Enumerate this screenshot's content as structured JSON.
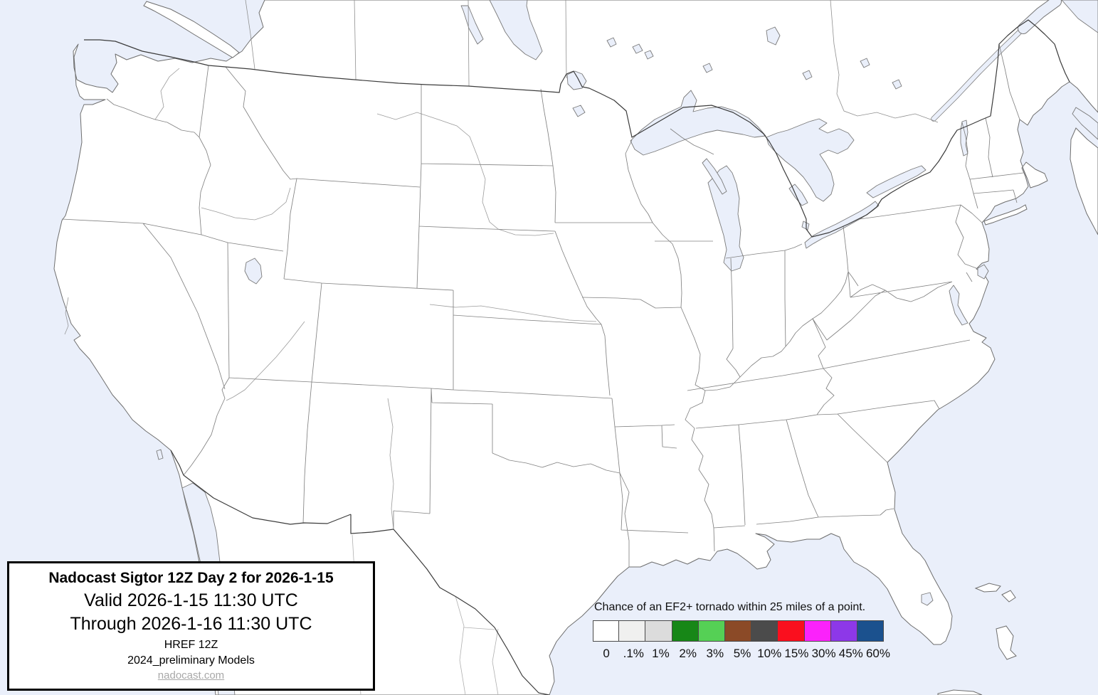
{
  "title_box": {
    "line1": "Nadocast Sigtor 12Z Day 2 for 2026-1-15",
    "line2": "Valid 2026-1-15 11:30 UTC",
    "line3": "Through 2026-1-16 11:30 UTC",
    "line4": "HREF 12Z",
    "line5": "2024_preliminary Models",
    "link": "nadocast.com"
  },
  "legend": {
    "caption": "Chance of an EF2+ tornado within 25 miles of a point.",
    "items": [
      {
        "label": "0",
        "color": "#ffffff"
      },
      {
        "label": ".1%",
        "color": "#f0f0ef"
      },
      {
        "label": "1%",
        "color": "#dcdcdc"
      },
      {
        "label": "2%",
        "color": "#178717"
      },
      {
        "label": "3%",
        "color": "#55d055"
      },
      {
        "label": "5%",
        "color": "#8b4a27"
      },
      {
        "label": "10%",
        "color": "#4b4b4b"
      },
      {
        "label": "15%",
        "color": "#fa0f1e"
      },
      {
        "label": "30%",
        "color": "#fb22fb"
      },
      {
        "label": "45%",
        "color": "#8d38e8"
      },
      {
        "label": "60%",
        "color": "#1b518e"
      }
    ]
  },
  "map": {
    "description": "Continental United States basemap with state borders, Great Lakes, Canada and Mexico context; no probability contours drawn (forecast is 0 everywhere).",
    "water_color": "#eaeffa",
    "land_color": "#ffffff",
    "state_border_color": "#828282",
    "national_border_color": "#3c3c3c"
  }
}
